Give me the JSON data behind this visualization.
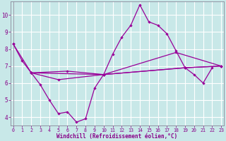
{
  "background_color": "#c8e8e8",
  "grid_color": "#aacccc",
  "plot_bg_color": "#c8e8e8",
  "line_color": "#990099",
  "tick_color": "#880088",
  "spine_color": "#888899",
  "x_min": 0,
  "x_max": 23,
  "y_min": 3.5,
  "y_max": 10.8,
  "yticks": [
    4,
    5,
    6,
    7,
    8,
    9,
    10
  ],
  "xlabel": "Windchill (Refroidissement éolien,°C)",
  "main_x": [
    0,
    1,
    2,
    3,
    4,
    5,
    6,
    7,
    8,
    9,
    10,
    11,
    12,
    13,
    14,
    15,
    16,
    17,
    18,
    19,
    20,
    21,
    22
  ],
  "main_y": [
    8.3,
    7.3,
    6.6,
    5.9,
    5.0,
    4.2,
    4.3,
    3.7,
    3.9,
    5.7,
    6.5,
    7.7,
    8.7,
    9.4,
    10.6,
    9.6,
    9.4,
    8.9,
    7.9,
    6.9,
    6.5,
    6.0,
    6.9
  ],
  "line2_x": [
    0,
    2,
    10,
    18,
    23
  ],
  "line2_y": [
    8.3,
    6.6,
    6.5,
    7.8,
    7.0
  ],
  "line3_x": [
    2,
    5,
    10,
    19,
    23
  ],
  "line3_y": [
    6.6,
    6.2,
    6.5,
    6.9,
    7.0
  ],
  "line4_x": [
    2,
    6,
    10,
    19,
    23
  ],
  "line4_y": [
    6.6,
    6.7,
    6.5,
    6.9,
    7.0
  ]
}
